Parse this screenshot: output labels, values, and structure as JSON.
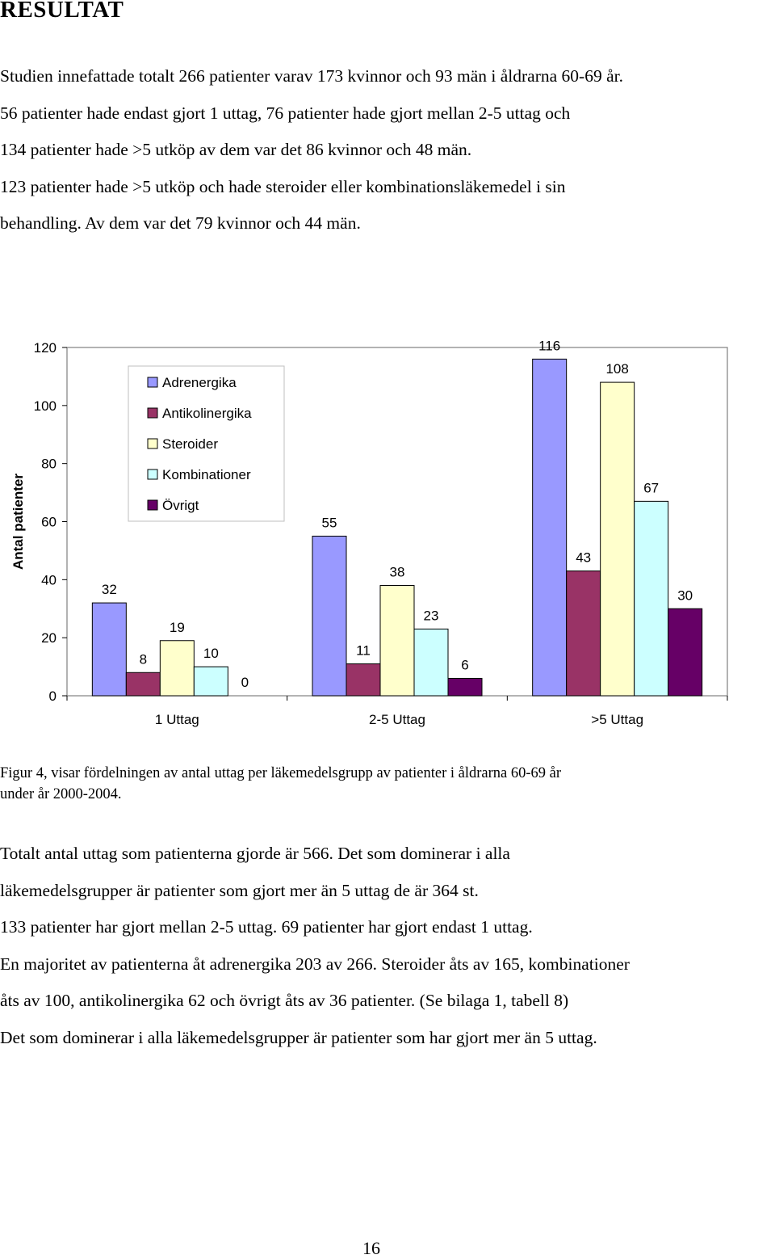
{
  "heading": "RESULTAT",
  "intro_lines": [
    "Studien innefattade totalt 266 patienter varav 173 kvinnor och 93 män i åldrarna 60-69 år.",
    "56 patienter hade endast gjort 1 uttag, 76 patienter hade gjort mellan 2-5 uttag och",
    "134 patienter hade >5 utköp av dem var det 86 kvinnor och 48 män.",
    "123 patienter hade >5 utköp och hade steroider eller kombinationsläkemedel i sin",
    "behandling. Av dem var det 79 kvinnor och 44 män."
  ],
  "chart_data": {
    "type": "bar",
    "title": "",
    "xlabel": "",
    "ylabel": "Antal patienter",
    "ylim": [
      0,
      120
    ],
    "yticks": [
      "0",
      "20",
      "40",
      "60",
      "80",
      "100",
      "120"
    ],
    "categories": [
      "1 Uttag",
      "2-5 Uttag",
      ">5 Uttag"
    ],
    "series": [
      {
        "name": "Adrenergika",
        "color": "#9999ff",
        "values": [
          32,
          55,
          116
        ]
      },
      {
        "name": "Antikolinergika",
        "color": "#993366",
        "values": [
          8,
          11,
          43
        ]
      },
      {
        "name": "Steroider",
        "color": "#ffffcc",
        "values": [
          19,
          38,
          108
        ]
      },
      {
        "name": "Kombinationer",
        "color": "#ccffff",
        "values": [
          10,
          23,
          67
        ]
      },
      {
        "name": "Övrigt",
        "color": "#660066",
        "values": [
          0,
          6,
          30
        ]
      }
    ],
    "legend_position": "top-left",
    "grid": false
  },
  "caption_lines": [
    "Figur 4, visar fördelningen av antal uttag per läkemedelsgrupp av patienter i åldrarna 60-69 år",
    "under år 2000-2004."
  ],
  "summary_lines": [
    "Totalt antal uttag som patienterna gjorde är 566. Det som dominerar i alla",
    "läkemedelsgrupper är patienter som gjort mer än 5 uttag de är 364 st.",
    "133 patienter har gjort mellan 2-5 uttag. 69 patienter har gjort endast 1 uttag.",
    "En majoritet av patienterna åt adrenergika 203 av 266. Steroider åts av 165, kombinationer",
    "åts av 100, antikolinergika 62 och övrigt åts av 36 patienter. (Se bilaga 1, tabell 8)",
    "Det som dominerar i alla läkemedelsgrupper är patienter som har gjort mer än 5 uttag."
  ],
  "page_number": "16"
}
